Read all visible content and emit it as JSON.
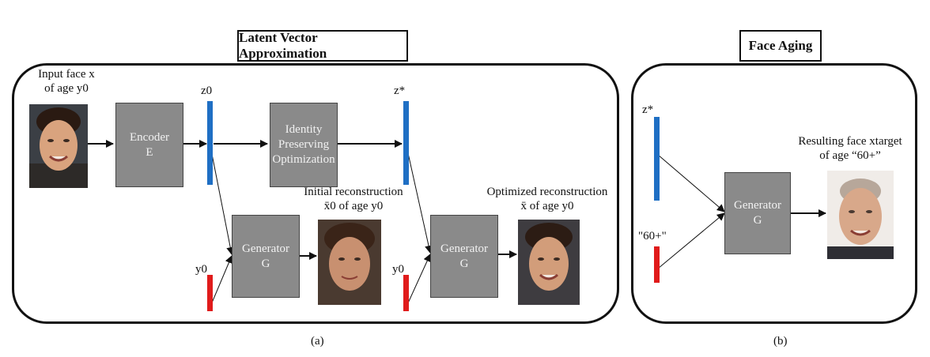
{
  "panel_a": {
    "title": "Latent Vector Approximation",
    "input_label_line1": "Input face x",
    "input_label_line2": "of age y0",
    "encoder_line1": "Encoder",
    "encoder_line2": "E",
    "z0_label": "z0",
    "ipo_line1": "Identity",
    "ipo_line2": "Preserving",
    "ipo_line3": "Optimization",
    "zstar_label": "z*",
    "generator1_line1": "Generator",
    "generator1_line2": "G",
    "y0_label_1": "y0",
    "initial_recon_line1": "Initial reconstruction",
    "initial_recon_line2": "x̄0 of age y0",
    "generator2_line1": "Generator",
    "generator2_line2": "G",
    "y0_label_2": "y0",
    "optimized_recon_line1": "Optimized reconstruction",
    "optimized_recon_line2": "x̄ of age y0",
    "caption": "(a)"
  },
  "panel_b": {
    "title": "Face Aging",
    "zstar_label": "z*",
    "age_label": "\"60+\"",
    "generator_line1": "Generator",
    "generator_line2": "G",
    "result_line1": "Resulting face xtarget",
    "result_line2": "of age “60+”",
    "caption": "(b)"
  },
  "colors": {
    "latent_bar": "#1f6fc4",
    "age_bar": "#e01b1b",
    "block_fill": "#8a8a8a"
  }
}
